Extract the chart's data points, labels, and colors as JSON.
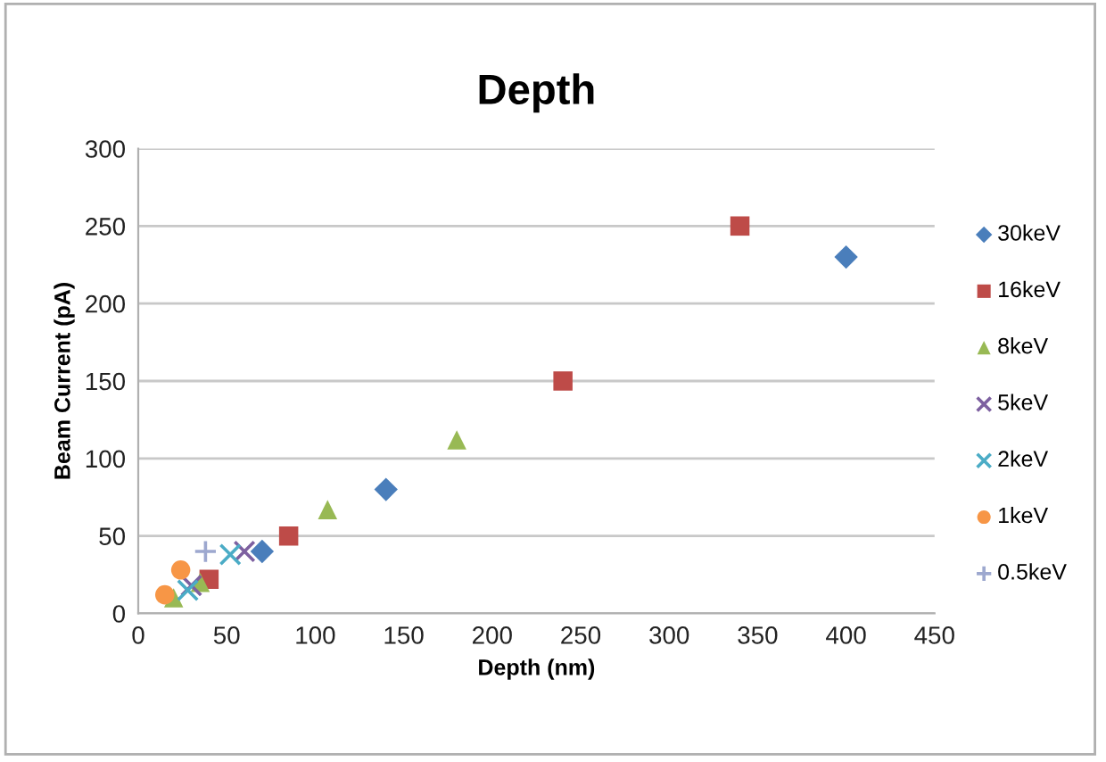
{
  "chart_data": {
    "type": "scatter",
    "title": "Depth",
    "xlabel": "Depth (nm)",
    "ylabel": "Beam Current (pA)",
    "xlim": [
      0,
      450
    ],
    "xticks": [
      0,
      50,
      100,
      150,
      200,
      250,
      300,
      350,
      400,
      450
    ],
    "ylim": [
      0,
      300
    ],
    "yticks": [
      0,
      50,
      100,
      150,
      200,
      250,
      300
    ],
    "grid": "y",
    "legend": "right",
    "series": [
      {
        "name": "30keV",
        "color": "#4a7ebb",
        "marker": "diamond",
        "x": [
          400,
          140,
          70
        ],
        "values": [
          230,
          80,
          40
        ]
      },
      {
        "name": "16keV",
        "color": "#be4b48",
        "marker": "square",
        "x": [
          340,
          240,
          85,
          40
        ],
        "values": [
          250,
          150,
          50,
          22
        ]
      },
      {
        "name": "8keV",
        "color": "#98b954",
        "marker": "triangle",
        "x": [
          180,
          107,
          35,
          20
        ],
        "values": [
          112,
          67,
          20,
          10
        ]
      },
      {
        "name": "5keV",
        "color": "#7d60a0",
        "marker": "cross",
        "x": [
          60,
          30
        ],
        "values": [
          40,
          18
        ]
      },
      {
        "name": "2keV",
        "color": "#4bacc6",
        "marker": "cross",
        "x": [
          52,
          28
        ],
        "values": [
          38,
          15
        ]
      },
      {
        "name": "1keV",
        "color": "#f79646",
        "marker": "circle",
        "x": [
          24,
          15
        ],
        "values": [
          28,
          12
        ]
      },
      {
        "name": "0.5keV",
        "color": "#9da8cf",
        "marker": "plus",
        "x": [
          38
        ],
        "values": [
          40
        ]
      }
    ]
  }
}
